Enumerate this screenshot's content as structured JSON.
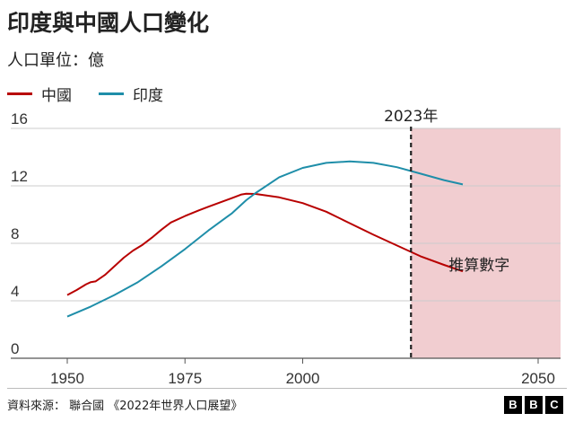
{
  "title": "印度與中國人口變化",
  "subtitle": "人口單位：億",
  "source": "資料來源： 聯合國 《2022年世界人口展望》",
  "brand": [
    "B",
    "B",
    "C"
  ],
  "chart_data": {
    "type": "line",
    "xlim": [
      1950,
      2050
    ],
    "ylim": [
      0,
      16
    ],
    "x_ticks": [
      1950,
      1975,
      2000,
      2050
    ],
    "y_ticks": [
      0,
      4,
      8,
      12,
      16
    ],
    "grid": "horizontal",
    "legend_position": "top-left",
    "projection_start": 2023,
    "projection_marker_label": "2023年",
    "projection_region_label": "推算數字",
    "series": [
      {
        "name": "中國",
        "color": "#b80000",
        "points": [
          [
            1950,
            4.4
          ],
          [
            1952,
            4.75
          ],
          [
            1954,
            5.15
          ],
          [
            1955,
            5.3
          ],
          [
            1956,
            5.35
          ],
          [
            1958,
            5.8
          ],
          [
            1960,
            6.4
          ],
          [
            1962,
            7.0
          ],
          [
            1964,
            7.5
          ],
          [
            1966,
            7.9
          ],
          [
            1968,
            8.4
          ],
          [
            1970,
            8.95
          ],
          [
            1972,
            9.45
          ],
          [
            1975,
            9.9
          ],
          [
            1978,
            10.3
          ],
          [
            1980,
            10.55
          ],
          [
            1985,
            11.15
          ],
          [
            1987,
            11.4
          ],
          [
            1988,
            11.45
          ],
          [
            1990,
            11.44
          ],
          [
            1995,
            11.2
          ],
          [
            2000,
            10.8
          ],
          [
            2005,
            10.2
          ],
          [
            2010,
            9.4
          ],
          [
            2015,
            8.6
          ],
          [
            2020,
            7.85
          ],
          [
            2025,
            7.1
          ],
          [
            2030,
            6.5
          ],
          [
            2034,
            6.05
          ]
        ]
      },
      {
        "name": "印度",
        "color": "#1f8ea9",
        "points": [
          [
            1950,
            2.9
          ],
          [
            1955,
            3.6
          ],
          [
            1960,
            4.4
          ],
          [
            1965,
            5.3
          ],
          [
            1970,
            6.4
          ],
          [
            1975,
            7.6
          ],
          [
            1980,
            8.9
          ],
          [
            1985,
            10.1
          ],
          [
            1988,
            11.0
          ],
          [
            1990,
            11.5
          ],
          [
            1995,
            12.6
          ],
          [
            2000,
            13.25
          ],
          [
            2005,
            13.6
          ],
          [
            2010,
            13.7
          ],
          [
            2015,
            13.6
          ],
          [
            2020,
            13.3
          ],
          [
            2025,
            12.85
          ],
          [
            2030,
            12.4
          ],
          [
            2034,
            12.1
          ]
        ]
      }
    ]
  }
}
